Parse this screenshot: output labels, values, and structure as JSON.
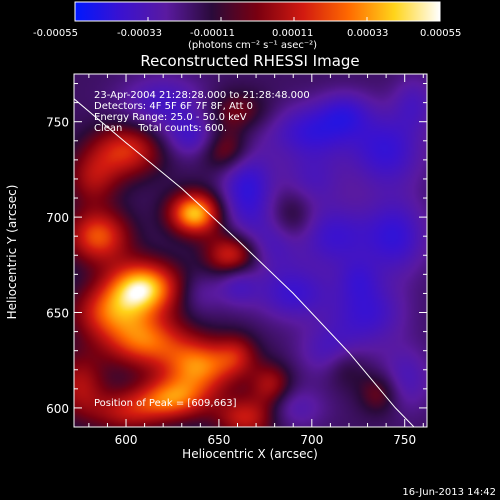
{
  "colorbar": {
    "ticks": [
      "-0.00055",
      "-0.00033",
      "-0.00011",
      "0.00011",
      "0.00033",
      "0.00055"
    ],
    "unit_label": "(photons cm⁻² s⁻¹ asec⁻²)",
    "colors": [
      "#0018ff",
      "#3a12d0",
      "#5a1aa0",
      "#2a0a3a",
      "#7a0010",
      "#d21a10",
      "#ff6a00",
      "#ffd41a",
      "#ffffff"
    ]
  },
  "info_lines": [
    "23-Apr-2004 21:28:28.000 to 21:28:48.000",
    "Detectors: 4F 5F 6F 7F 8F, Att 0",
    "Energy Range: 25.0 - 50.0 keV",
    "Clean     Total counts: 600."
  ],
  "peak_label": "Position of Peak = [609,663]",
  "footer_date": "16-Jun-2013 14:42",
  "chart_data": {
    "type": "heatmap",
    "title": "Reconstructed RHESSI Image",
    "xlabel": "Heliocentric X (arcsec)",
    "ylabel": "Heliocentric Y (arcsec)",
    "xlim": [
      572,
      762
    ],
    "ylim": [
      590,
      775
    ],
    "xticks": [
      600,
      650,
      700,
      750
    ],
    "yticks": [
      600,
      650,
      700,
      750
    ],
    "zlim": [
      -0.00055,
      0.00055
    ],
    "peak": [
      609,
      663
    ],
    "limb": [
      [
        572,
        762
      ],
      [
        600,
        739
      ],
      [
        630,
        715
      ],
      [
        660,
        688
      ],
      [
        690,
        660
      ],
      [
        720,
        629
      ],
      [
        745,
        600
      ],
      [
        755,
        590
      ]
    ],
    "sources": [
      {
        "x": 609,
        "y": 663,
        "a": 1.0,
        "sx": 14,
        "sy": 10
      },
      {
        "x": 637,
        "y": 702,
        "a": 0.95,
        "sx": 10,
        "sy": 8
      },
      {
        "x": 585,
        "y": 690,
        "a": 0.7,
        "sx": 12,
        "sy": 10
      },
      {
        "x": 600,
        "y": 735,
        "a": 0.6,
        "sx": 14,
        "sy": 10
      },
      {
        "x": 657,
        "y": 680,
        "a": 0.65,
        "sx": 10,
        "sy": 8
      },
      {
        "x": 590,
        "y": 650,
        "a": 0.55,
        "sx": 14,
        "sy": 10
      },
      {
        "x": 610,
        "y": 635,
        "a": 0.7,
        "sx": 16,
        "sy": 10
      },
      {
        "x": 640,
        "y": 622,
        "a": 0.75,
        "sx": 14,
        "sy": 10
      },
      {
        "x": 625,
        "y": 605,
        "a": 0.7,
        "sx": 14,
        "sy": 8
      },
      {
        "x": 665,
        "y": 595,
        "a": 0.55,
        "sx": 12,
        "sy": 8
      },
      {
        "x": 600,
        "y": 598,
        "a": 0.45,
        "sx": 14,
        "sy": 8
      },
      {
        "x": 575,
        "y": 612,
        "a": 0.45,
        "sx": 10,
        "sy": 12
      },
      {
        "x": 660,
        "y": 755,
        "a": 0.35,
        "sx": 12,
        "sy": 8
      },
      {
        "x": 678,
        "y": 612,
        "a": 0.45,
        "sx": 8,
        "sy": 8
      },
      {
        "x": 718,
        "y": 622,
        "a": 0.25,
        "sx": 8,
        "sy": 8
      },
      {
        "x": 737,
        "y": 608,
        "a": 0.35,
        "sx": 8,
        "sy": 8
      },
      {
        "x": 660,
        "y": 628,
        "a": 0.35,
        "sx": 8,
        "sy": 8
      },
      {
        "x": 690,
        "y": 700,
        "a": 0.25,
        "sx": 8,
        "sy": 10
      },
      {
        "x": 655,
        "y": 735,
        "a": 0.45,
        "sx": 10,
        "sy": 8
      },
      {
        "x": 582,
        "y": 720,
        "a": 0.4,
        "sx": 10,
        "sy": 10
      },
      {
        "x": 620,
        "y": 760,
        "a": -0.4,
        "sx": 16,
        "sy": 10
      },
      {
        "x": 665,
        "y": 715,
        "a": -0.55,
        "sx": 10,
        "sy": 18
      },
      {
        "x": 700,
        "y": 745,
        "a": -0.5,
        "sx": 16,
        "sy": 10
      },
      {
        "x": 740,
        "y": 735,
        "a": -0.5,
        "sx": 14,
        "sy": 14
      },
      {
        "x": 745,
        "y": 690,
        "a": -0.5,
        "sx": 12,
        "sy": 14
      },
      {
        "x": 712,
        "y": 690,
        "a": -0.45,
        "sx": 14,
        "sy": 12
      },
      {
        "x": 690,
        "y": 660,
        "a": -0.45,
        "sx": 14,
        "sy": 10
      },
      {
        "x": 730,
        "y": 650,
        "a": -0.45,
        "sx": 14,
        "sy": 12
      },
      {
        "x": 710,
        "y": 630,
        "a": -0.35,
        "sx": 12,
        "sy": 10
      },
      {
        "x": 750,
        "y": 615,
        "a": -0.35,
        "sx": 10,
        "sy": 12
      },
      {
        "x": 690,
        "y": 600,
        "a": -0.3,
        "sx": 12,
        "sy": 8
      },
      {
        "x": 635,
        "y": 742,
        "a": -0.4,
        "sx": 10,
        "sy": 8
      },
      {
        "x": 680,
        "y": 685,
        "a": -0.3,
        "sx": 10,
        "sy": 10
      },
      {
        "x": 718,
        "y": 755,
        "a": -0.35,
        "sx": 10,
        "sy": 8
      },
      {
        "x": 660,
        "y": 665,
        "a": -0.35,
        "sx": 8,
        "sy": 8
      },
      {
        "x": 700,
        "y": 720,
        "a": -0.3,
        "sx": 12,
        "sy": 10
      },
      {
        "x": 755,
        "y": 760,
        "a": -0.3,
        "sx": 8,
        "sy": 10
      },
      {
        "x": 640,
        "y": 660,
        "a": -0.2,
        "sx": 8,
        "sy": 8
      },
      {
        "x": 725,
        "y": 668,
        "a": -0.25,
        "sx": 8,
        "sy": 8
      }
    ]
  }
}
